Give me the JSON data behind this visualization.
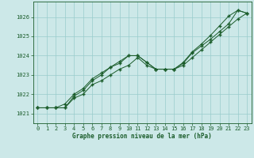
{
  "title": "Graphe pression niveau de la mer (hPa)",
  "background_color": "#cce8e8",
  "grid_color": "#99cccc",
  "line_color": "#1a5c2a",
  "xlim": [
    -0.5,
    23.5
  ],
  "ylim": [
    1020.5,
    1026.8
  ],
  "yticks": [
    1021,
    1022,
    1023,
    1024,
    1025,
    1026
  ],
  "xticks": [
    0,
    1,
    2,
    3,
    4,
    5,
    6,
    7,
    8,
    9,
    10,
    11,
    12,
    13,
    14,
    15,
    16,
    17,
    18,
    19,
    20,
    21,
    22,
    23
  ],
  "line1_x": [
    0,
    1,
    2,
    3,
    4,
    5,
    6,
    7,
    8,
    9,
    10,
    11,
    12,
    13,
    14,
    15,
    16,
    17,
    18,
    19,
    20,
    21,
    22,
    23
  ],
  "line1_y": [
    1021.3,
    1021.3,
    1021.3,
    1021.3,
    1021.9,
    1022.2,
    1022.7,
    1023.0,
    1023.4,
    1023.6,
    1024.0,
    1024.0,
    1023.65,
    1023.3,
    1023.3,
    1023.3,
    1023.6,
    1024.15,
    1024.5,
    1024.85,
    1025.25,
    1025.65,
    1026.35,
    1026.2
  ],
  "line2_x": [
    0,
    1,
    2,
    3,
    4,
    5,
    6,
    7,
    8,
    9,
    10,
    11,
    12,
    13,
    14,
    15,
    16,
    17,
    18,
    19,
    20,
    21,
    22,
    23
  ],
  "line2_y": [
    1021.3,
    1021.3,
    1021.3,
    1021.3,
    1021.8,
    1022.0,
    1022.5,
    1022.7,
    1023.0,
    1023.3,
    1023.5,
    1023.9,
    1023.5,
    1023.3,
    1023.3,
    1023.3,
    1023.5,
    1023.9,
    1024.3,
    1024.7,
    1025.1,
    1025.5,
    1025.9,
    1026.2
  ],
  "line3_x": [
    0,
    1,
    2,
    3,
    4,
    5,
    6,
    7,
    8,
    9,
    10,
    11,
    12,
    13,
    14,
    15,
    16,
    17,
    18,
    19,
    20,
    21,
    22,
    23
  ],
  "line3_y": [
    1021.3,
    1021.3,
    1021.3,
    1021.5,
    1022.0,
    1022.3,
    1022.8,
    1023.1,
    1023.4,
    1023.7,
    1024.0,
    1024.0,
    1023.65,
    1023.3,
    1023.3,
    1023.3,
    1023.65,
    1024.2,
    1024.6,
    1025.05,
    1025.55,
    1026.05,
    1026.35,
    1026.2
  ]
}
